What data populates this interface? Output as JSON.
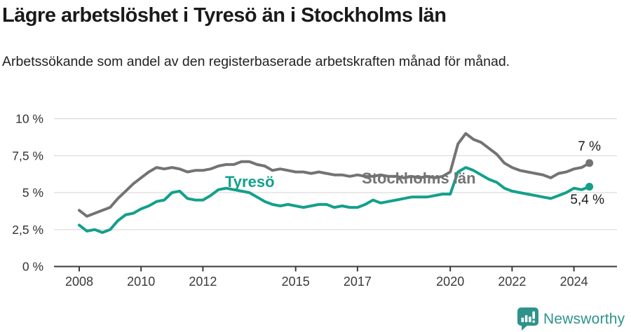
{
  "chart_data": {
    "type": "line",
    "title": "Lägre arbetslöshet i Tyresö än i Stockholms län",
    "subtitle": "Arbetssökande som andel av den registerbaserade arbetskraften månad för månad.",
    "xlabel": "",
    "ylabel": "",
    "xlim": [
      2007.2,
      2025.4
    ],
    "ylim": [
      0,
      10
    ],
    "grid": true,
    "legend_position": "inline-labels",
    "x": [
      2008,
      2008.25,
      2008.5,
      2008.75,
      2009,
      2009.25,
      2009.5,
      2009.75,
      2010,
      2010.25,
      2010.5,
      2010.75,
      2011,
      2011.25,
      2011.5,
      2011.75,
      2012,
      2012.25,
      2012.5,
      2012.75,
      2013,
      2013.25,
      2013.5,
      2013.75,
      2014,
      2014.25,
      2014.5,
      2014.75,
      2015,
      2015.25,
      2015.5,
      2015.75,
      2016,
      2016.25,
      2016.5,
      2016.75,
      2017,
      2017.25,
      2017.5,
      2017.75,
      2018,
      2018.25,
      2018.5,
      2018.75,
      2019,
      2019.25,
      2019.5,
      2019.75,
      2020,
      2020.25,
      2020.5,
      2020.75,
      2021,
      2021.25,
      2021.5,
      2021.75,
      2022,
      2022.25,
      2022.5,
      2022.75,
      2023,
      2023.25,
      2023.5,
      2023.75,
      2024,
      2024.25,
      2024.5
    ],
    "series": [
      {
        "name": "Stockholms län",
        "color": "#737373",
        "end_label": "7 %",
        "values": [
          3.8,
          3.4,
          3.6,
          3.8,
          4.0,
          4.6,
          5.1,
          5.6,
          6.0,
          6.4,
          6.7,
          6.6,
          6.7,
          6.6,
          6.4,
          6.5,
          6.5,
          6.6,
          6.8,
          6.9,
          6.9,
          7.1,
          7.1,
          6.9,
          6.8,
          6.5,
          6.6,
          6.5,
          6.4,
          6.4,
          6.3,
          6.4,
          6.3,
          6.2,
          6.2,
          6.1,
          6.2,
          6.1,
          6.1,
          6.2,
          6.1,
          6.1,
          6.0,
          6.1,
          6.0,
          6.1,
          6.0,
          6.1,
          6.4,
          8.3,
          9.0,
          8.6,
          8.4,
          8.0,
          7.6,
          7.0,
          6.7,
          6.5,
          6.4,
          6.3,
          6.2,
          6.0,
          6.3,
          6.4,
          6.6,
          6.7,
          7.0
        ]
      },
      {
        "name": "Tyresö",
        "color": "#13a08b",
        "end_label": "5,4 %",
        "values": [
          2.8,
          2.4,
          2.5,
          2.3,
          2.5,
          3.1,
          3.5,
          3.6,
          3.9,
          4.1,
          4.4,
          4.5,
          5.0,
          5.1,
          4.6,
          4.5,
          4.5,
          4.8,
          5.2,
          5.3,
          5.2,
          5.1,
          5.0,
          4.7,
          4.4,
          4.2,
          4.1,
          4.2,
          4.1,
          4.0,
          4.1,
          4.2,
          4.2,
          4.0,
          4.1,
          4.0,
          4.0,
          4.2,
          4.5,
          4.3,
          4.4,
          4.5,
          4.6,
          4.7,
          4.7,
          4.7,
          4.8,
          4.9,
          4.9,
          6.4,
          6.7,
          6.5,
          6.2,
          5.9,
          5.7,
          5.3,
          5.1,
          5.0,
          4.9,
          4.8,
          4.7,
          4.6,
          4.8,
          5.0,
          5.3,
          5.2,
          5.4
        ]
      }
    ],
    "x_ticks": [
      {
        "value": 2008,
        "label": "2008"
      },
      {
        "value": 2010,
        "label": "2010"
      },
      {
        "value": 2012,
        "label": "2012"
      },
      {
        "value": 2015,
        "label": "2015"
      },
      {
        "value": 2017,
        "label": "2017"
      },
      {
        "value": 2020,
        "label": "2020"
      },
      {
        "value": 2022,
        "label": "2022"
      },
      {
        "value": 2024,
        "label": "2024"
      }
    ],
    "y_ticks": [
      {
        "value": 0,
        "label": "0 %"
      },
      {
        "value": 2.5,
        "label": "2,5 %"
      },
      {
        "value": 5,
        "label": "5 %"
      },
      {
        "value": 7.5,
        "label": "7,5 %"
      },
      {
        "value": 10,
        "label": "10 %"
      }
    ]
  },
  "footer": {
    "brand": "Newsworthy"
  },
  "colors": {
    "teal": "#13a08b",
    "gray": "#737373",
    "grid": "#dcdcdc",
    "axis": "#3a3a3a",
    "text": "#1a1a1a",
    "logo": "#2f938b"
  }
}
